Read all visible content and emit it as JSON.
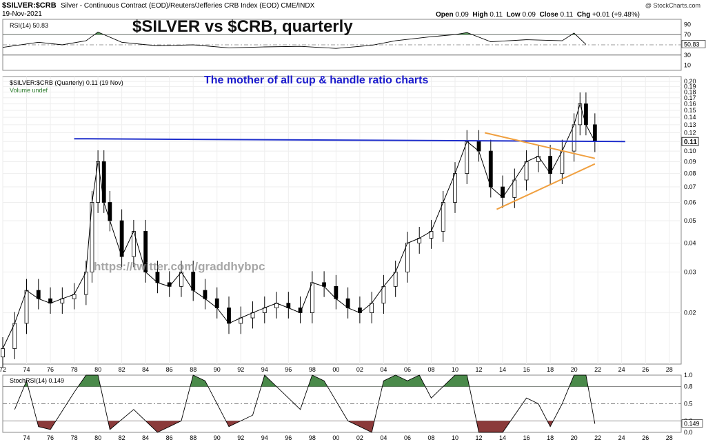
{
  "header": {
    "symbol": "$SILVER:$CRB",
    "description": "Silver - Continuous Contract (EOD)/Reuters/Jefferies CRB Index (EOD) CME/INDX",
    "date": "19-Nov-2021",
    "branding": "@ StockCharts.com",
    "ohlc": {
      "open_label": "Open",
      "open": "0.09",
      "high_label": "High",
      "high": "0.11",
      "low_label": "Low",
      "low": "0.09",
      "close_label": "Close",
      "close": "0.11",
      "chg_label": "Chg",
      "chg": "+0.01 (+9.48%)"
    }
  },
  "overlay": {
    "title": "$SILVER vs $CRB, quarterly",
    "subtitle": "The mother of all cup & handle ratio charts",
    "watermark": "https://twitter.com/graddhybpc"
  },
  "colors": {
    "resistance_line": "#1f2fcc",
    "triangle": "#f0a040",
    "rsi_fill": "#2e7d32",
    "stoch_up_fill": "#4a8a4a",
    "stoch_down_fill": "#8b3a3a",
    "title_blue": "#1a1acc"
  },
  "chart_data": [
    {
      "type": "line",
      "panel": "RSI",
      "label": "RSI(14) 50.83",
      "y_ticks": [
        10,
        30,
        50,
        70,
        90
      ],
      "ylim": [
        0,
        100
      ],
      "levels": [
        30,
        70
      ],
      "last_value": "50.83",
      "x": [
        1972,
        1975,
        1977,
        1979,
        1980,
        1982,
        1985,
        1988,
        1991,
        1994,
        1997,
        2000,
        2003,
        2005,
        2008,
        2010,
        2011,
        2013,
        2016,
        2019,
        2020,
        2021
      ],
      "values": [
        45,
        55,
        50,
        58,
        75,
        55,
        48,
        50,
        44,
        46,
        47,
        43,
        49,
        58,
        66,
        70,
        74,
        56,
        60,
        58,
        73,
        50.83
      ]
    },
    {
      "type": "candlestick",
      "panel": "Price",
      "label": "$SILVER:$CRB (Quarterly) 0.11 (19 Nov)",
      "volume_label": "Volume undef",
      "scale": "log",
      "ylim": [
        0.012,
        0.21
      ],
      "y_ticks": [
        0.02,
        0.03,
        0.04,
        0.05,
        0.06,
        0.07,
        0.08,
        0.09,
        0.1,
        0.11,
        0.12,
        0.13,
        0.14,
        0.15,
        0.16,
        0.17,
        0.18,
        0.19,
        0.2
      ],
      "last_value": "0.11",
      "x_ticks": [
        "72",
        "74",
        "76",
        "78",
        "80",
        "82",
        "84",
        "86",
        "88",
        "90",
        "92",
        "94",
        "96",
        "98",
        "00",
        "02",
        "04",
        "06",
        "08",
        "10",
        "12",
        "14",
        "16",
        "18",
        "20",
        "22",
        "24",
        "26",
        "28"
      ],
      "xlim": [
        1972,
        2029
      ],
      "x": [
        1972,
        1973,
        1974,
        1975,
        1976,
        1977,
        1978,
        1979,
        1979.5,
        1980,
        1980.5,
        1981,
        1982,
        1983,
        1984,
        1985,
        1986,
        1987,
        1988,
        1989,
        1990,
        1991,
        1992,
        1993,
        1994,
        1995,
        1996,
        1997,
        1998,
        1999,
        2000,
        2001,
        2002,
        2003,
        2004,
        2005,
        2006,
        2007,
        2008,
        2009,
        2010,
        2011,
        2012,
        2013,
        2014,
        2015,
        2016,
        2017,
        2018,
        2019,
        2020,
        2020.5,
        2021,
        2021.75
      ],
      "values": [
        0.014,
        0.018,
        0.025,
        0.023,
        0.022,
        0.023,
        0.024,
        0.03,
        0.06,
        0.09,
        0.06,
        0.05,
        0.035,
        0.045,
        0.03,
        0.027,
        0.026,
        0.03,
        0.025,
        0.023,
        0.021,
        0.018,
        0.019,
        0.02,
        0.021,
        0.022,
        0.021,
        0.02,
        0.027,
        0.026,
        0.023,
        0.021,
        0.02,
        0.022,
        0.026,
        0.03,
        0.04,
        0.042,
        0.045,
        0.06,
        0.08,
        0.11,
        0.1,
        0.07,
        0.063,
        0.075,
        0.09,
        0.095,
        0.08,
        0.1,
        0.13,
        0.16,
        0.13,
        0.11
      ],
      "annotations": {
        "resistance_level": 0.11,
        "triangle_upper": [
          [
            2012.5,
            0.12
          ],
          [
            2021.75,
            0.093
          ]
        ],
        "triangle_lower": [
          [
            2013.5,
            0.056
          ],
          [
            2021.75,
            0.088
          ]
        ]
      }
    },
    {
      "type": "line",
      "panel": "StochRSI",
      "label": "StochRSI(14) 0.149",
      "y_ticks": [
        "0.0",
        "0.2",
        "0.5",
        "0.8",
        "1.0"
      ],
      "ylim": [
        0,
        1
      ],
      "levels": [
        0.2,
        0.5,
        0.8
      ],
      "last_value": "0.149",
      "x": [
        1973,
        1974,
        1975,
        1976,
        1978,
        1979,
        1980,
        1981,
        1983,
        1985,
        1987,
        1988,
        1989,
        1991,
        1993,
        1994,
        1995,
        1997,
        1998,
        1999,
        2001,
        2003,
        2004,
        2005,
        2006,
        2007,
        2008,
        2010,
        2011,
        2012,
        2014,
        2016,
        2017,
        2018,
        2019,
        2020,
        2021,
        2021.75
      ],
      "values": [
        0.4,
        0.9,
        0.1,
        0.05,
        0.7,
        1.0,
        1.0,
        0.05,
        0.4,
        0.0,
        0.2,
        1.0,
        0.9,
        0.1,
        0.3,
        1.0,
        0.8,
        0.4,
        1.0,
        0.9,
        0.2,
        0.0,
        0.9,
        1.0,
        0.9,
        1.0,
        0.6,
        1.0,
        1.0,
        0.0,
        0.0,
        0.6,
        0.5,
        0.1,
        0.5,
        1.0,
        1.0,
        0.149
      ]
    }
  ]
}
